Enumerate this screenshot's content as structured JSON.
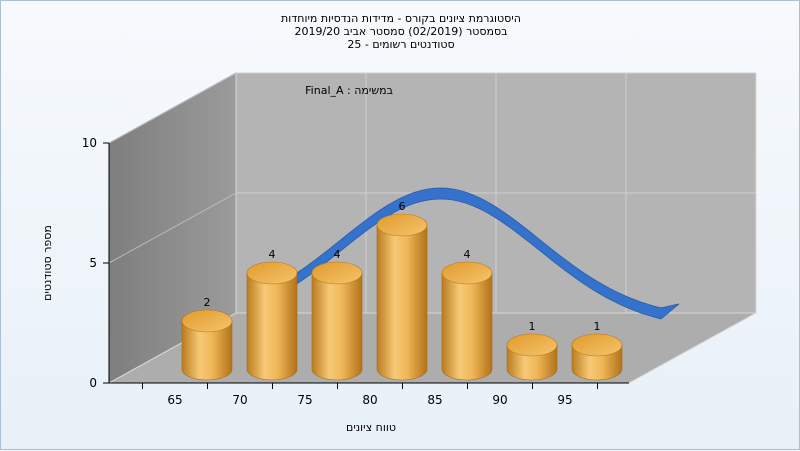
{
  "chart_data": {
    "type": "bar",
    "title": [
      "היסטוגרמת ציונים בקורס - מדידות הנדסיות מיוחדות",
      "בסמסטר  (02/2019)  סמסטר אביב 2019/20",
      "סטודנטים רשומים - 25"
    ],
    "annotation": "במשימה : Final_A",
    "xlabel": "טווח ציונים",
    "ylabel": "מספר סטודנטים",
    "categories": [
      "65",
      "70",
      "75",
      "80",
      "85",
      "90",
      "95"
    ],
    "values": [
      2,
      4,
      4,
      6,
      4,
      1,
      1
    ],
    "x_ticks": [
      "65",
      "70",
      "75",
      "80",
      "85",
      "90",
      "95"
    ],
    "y_ticks": [
      "0",
      "5",
      "10"
    ],
    "ylim": [
      0,
      10
    ],
    "bar_color": "#e8a642",
    "curve_color": "#2f6fce",
    "curve_shape": "normal-distribution ribbon",
    "grid": true
  }
}
